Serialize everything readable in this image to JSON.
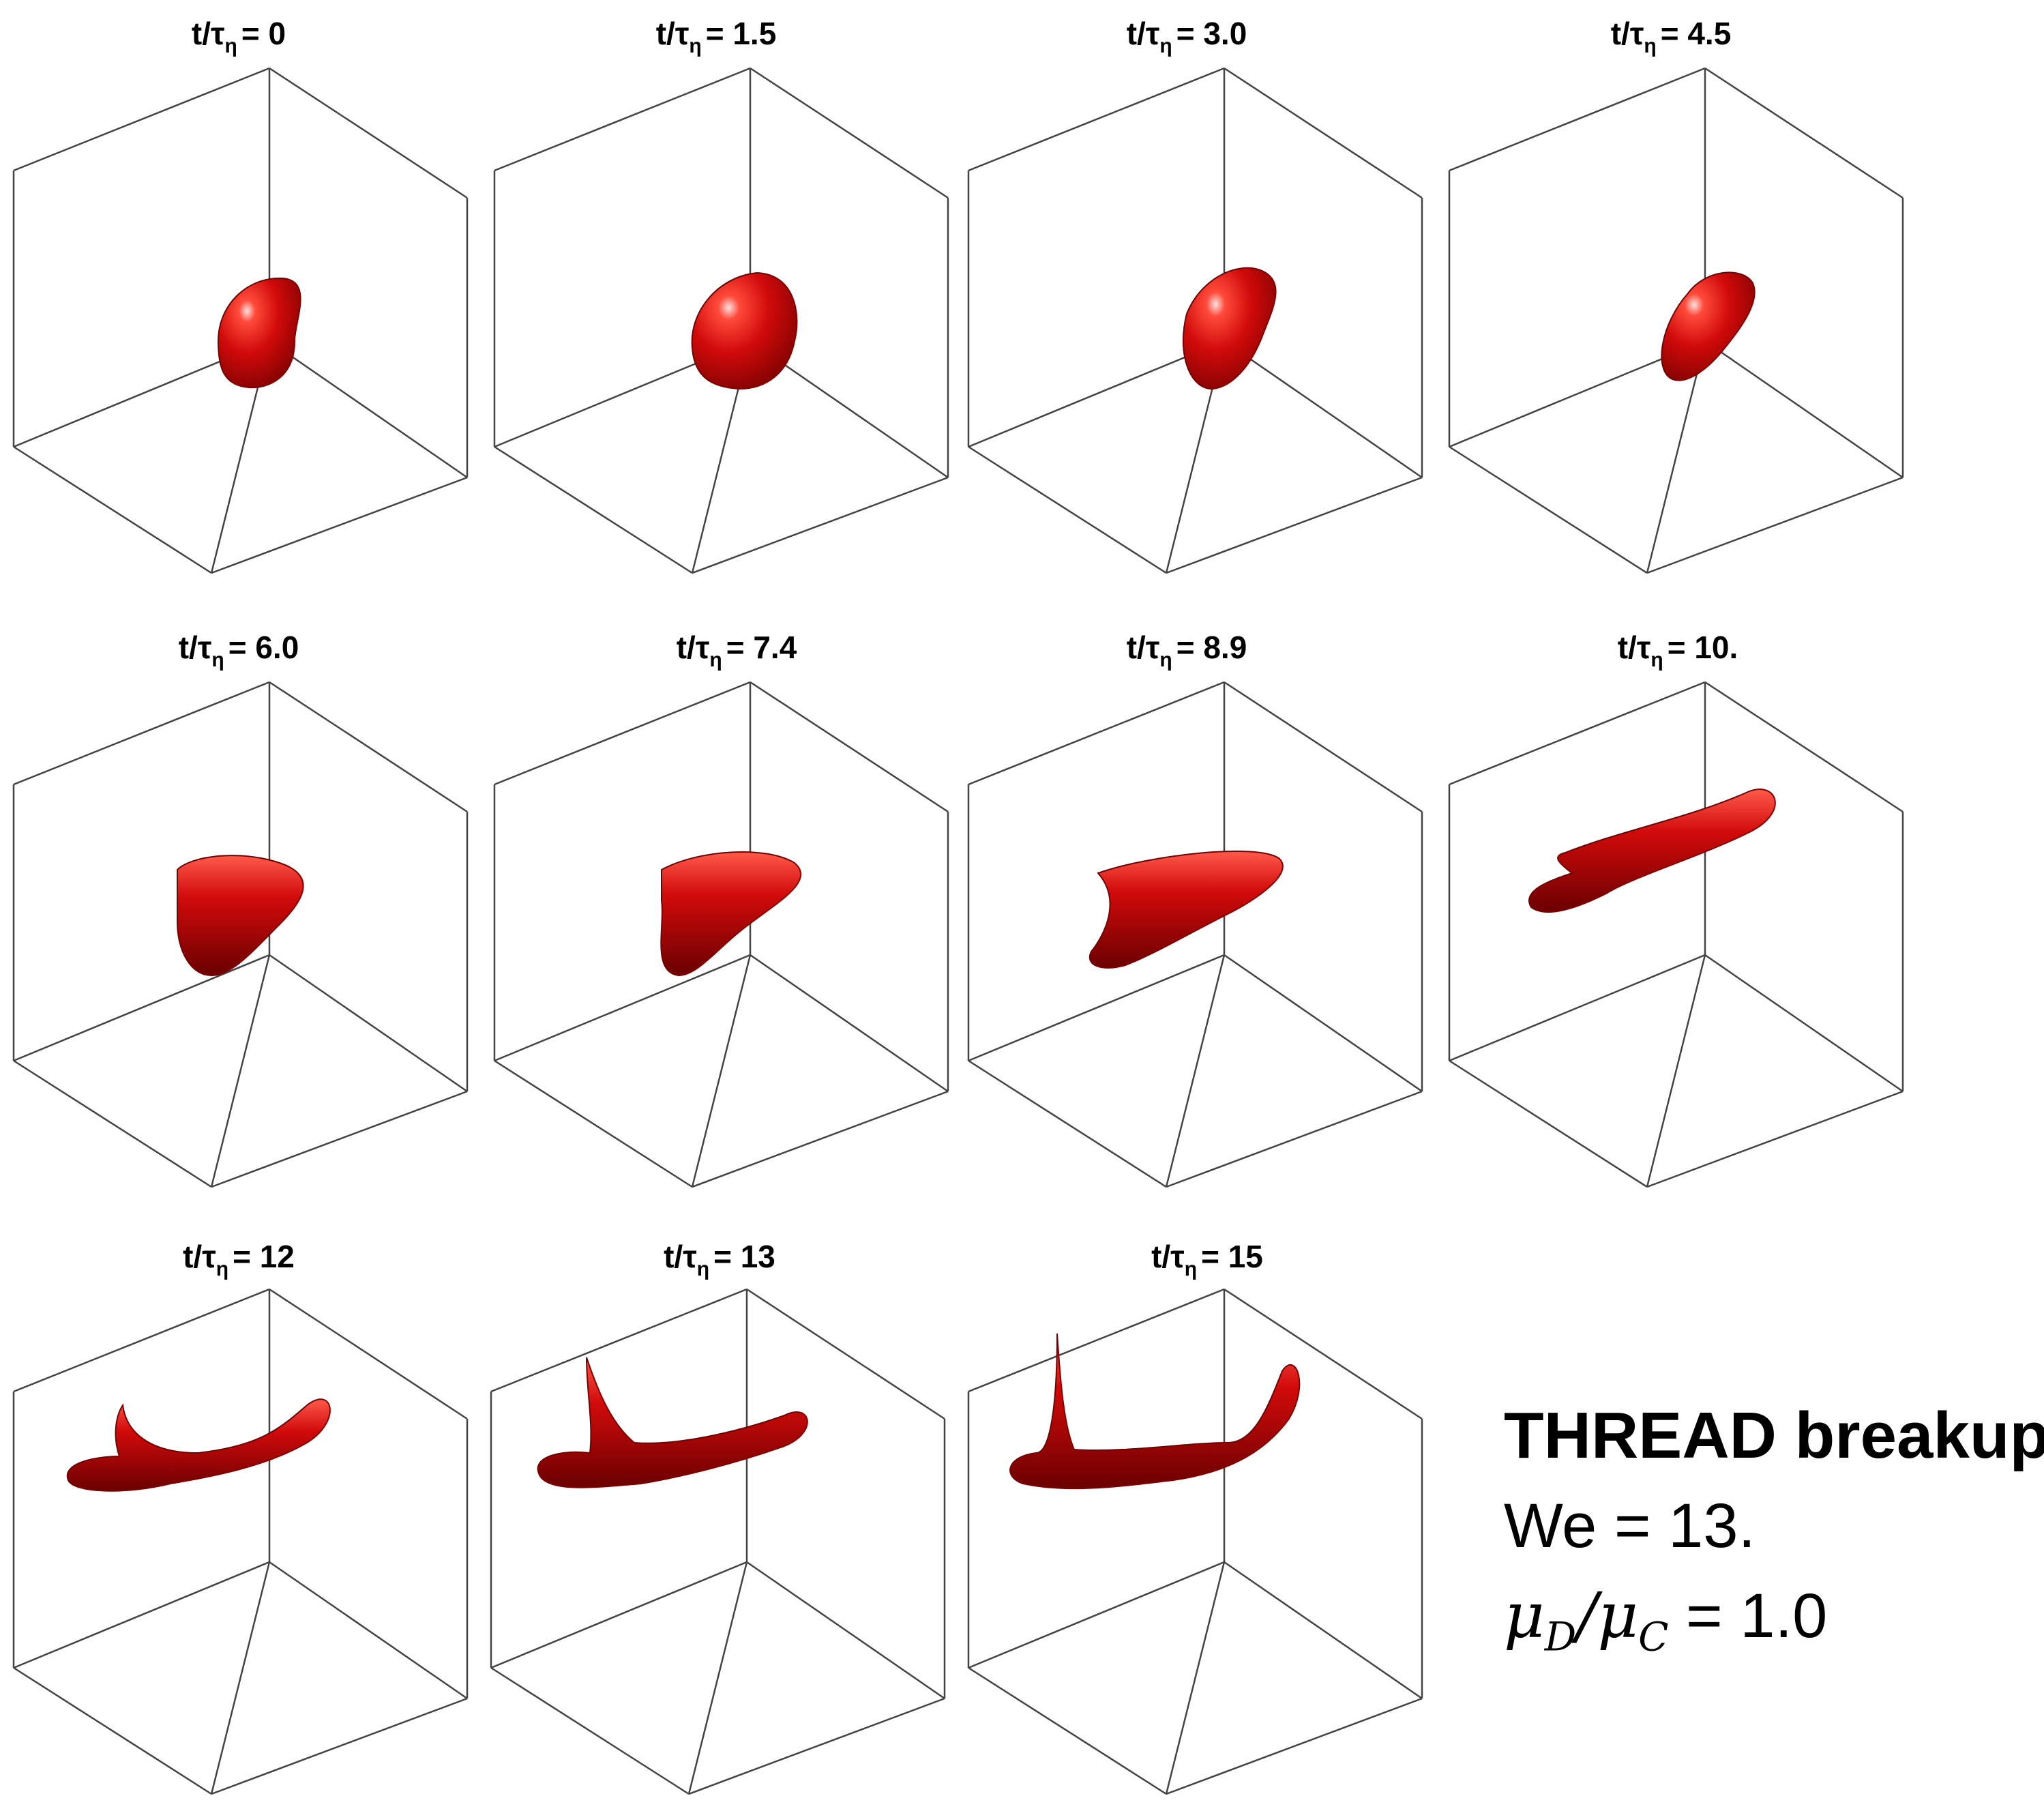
{
  "panels": [
    {
      "label_prefix": "t/τ",
      "label_sub": "η",
      "label_value": "= 0"
    },
    {
      "label_prefix": "t/τ",
      "label_sub": "η",
      "label_value": "= 1.5"
    },
    {
      "label_prefix": "t/τ",
      "label_sub": "η",
      "label_value": "= 3.0"
    },
    {
      "label_prefix": "t/τ",
      "label_sub": "η",
      "label_value": "= 4.5"
    },
    {
      "label_prefix": "t/τ",
      "label_sub": "η",
      "label_value": "= 6.0"
    },
    {
      "label_prefix": "t/τ",
      "label_sub": "η",
      "label_value": "= 7.4"
    },
    {
      "label_prefix": "t/τ",
      "label_sub": "η",
      "label_value": "= 8.9"
    },
    {
      "label_prefix": "t/τ",
      "label_sub": "η",
      "label_value": "= 10."
    },
    {
      "label_prefix": "t/τ",
      "label_sub": "η",
      "label_value": "= 12"
    },
    {
      "label_prefix": "t/τ",
      "label_sub": "η",
      "label_value": "= 13"
    },
    {
      "label_prefix": "t/τ",
      "label_sub": "η",
      "label_value": "= 15"
    }
  ],
  "annotation": {
    "title": "THREAD breakup",
    "weber": "We = 13.",
    "ratio_mu_d": "μ",
    "ratio_sub_d": "D",
    "ratio_slash": "/",
    "ratio_mu_c": "μ",
    "ratio_sub_c": "C",
    "ratio_value": " = 1.0"
  },
  "colors": {
    "droplet": "#d10a0a",
    "droplet_dark": "#7a0000",
    "droplet_highlight": "#ffd6d6",
    "cube_edge": "#444444",
    "background": "#ffffff"
  }
}
